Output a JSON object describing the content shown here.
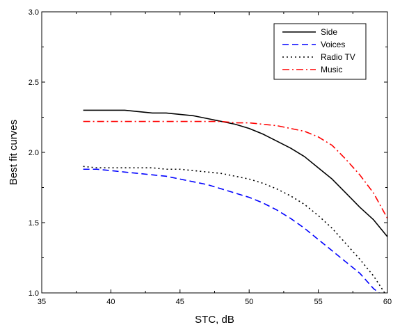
{
  "chart_data": {
    "type": "line",
    "title": "",
    "xlabel": "STC, dB",
    "ylabel": "Best fit curves",
    "xlim": [
      35,
      60
    ],
    "ylim": [
      1.0,
      3.0
    ],
    "x_ticks": [
      35,
      40,
      45,
      50,
      55,
      60
    ],
    "y_ticks": [
      1.0,
      1.5,
      2.0,
      2.5,
      3.0
    ],
    "x_tick_labels": [
      "35",
      "40",
      "45",
      "50",
      "55",
      "60"
    ],
    "y_tick_labels": [
      "1.0",
      "1.5",
      "2.0",
      "2.5",
      "3.0"
    ],
    "grid": false,
    "legend_position": "top-right",
    "series": [
      {
        "name": "Side",
        "color": "#000000",
        "line_style": "solid",
        "x": [
          38,
          39,
          40,
          41,
          42,
          43,
          44,
          45,
          46,
          47,
          48,
          49,
          50,
          51,
          52,
          53,
          54,
          55,
          56,
          57,
          58,
          59,
          60
        ],
        "y": [
          2.3,
          2.3,
          2.3,
          2.3,
          2.29,
          2.28,
          2.28,
          2.27,
          2.26,
          2.24,
          2.22,
          2.2,
          2.17,
          2.13,
          2.08,
          2.03,
          1.97,
          1.89,
          1.81,
          1.71,
          1.61,
          1.52,
          1.4
        ]
      },
      {
        "name": "Voices",
        "color": "#0000ff",
        "line_style": "dashed",
        "x": [
          38,
          39,
          40,
          41,
          42,
          43,
          44,
          45,
          46,
          47,
          48,
          49,
          50,
          51,
          52,
          53,
          54,
          55,
          56,
          57,
          58,
          59,
          59.4
        ],
        "y": [
          1.88,
          1.88,
          1.87,
          1.86,
          1.85,
          1.84,
          1.83,
          1.81,
          1.79,
          1.77,
          1.74,
          1.71,
          1.68,
          1.64,
          1.59,
          1.53,
          1.46,
          1.38,
          1.3,
          1.22,
          1.14,
          1.03,
          1.0
        ]
      },
      {
        "name": "Radio TV",
        "color": "#000000",
        "line_style": "dotted",
        "x": [
          38,
          39,
          40,
          41,
          42,
          43,
          44,
          45,
          46,
          47,
          48,
          49,
          50,
          51,
          52,
          53,
          54,
          55,
          56,
          57,
          58,
          59,
          59.8
        ],
        "y": [
          1.9,
          1.89,
          1.89,
          1.89,
          1.89,
          1.89,
          1.88,
          1.88,
          1.87,
          1.86,
          1.85,
          1.83,
          1.81,
          1.78,
          1.74,
          1.69,
          1.63,
          1.55,
          1.46,
          1.35,
          1.24,
          1.12,
          1.0
        ]
      },
      {
        "name": "Music",
        "color": "#ff0000",
        "line_style": "dashdot",
        "x": [
          38,
          39,
          40,
          41,
          42,
          43,
          44,
          45,
          46,
          47,
          48,
          49,
          50,
          51,
          52,
          53,
          54,
          55,
          56,
          57,
          58,
          59,
          60
        ],
        "y": [
          2.22,
          2.22,
          2.22,
          2.22,
          2.22,
          2.22,
          2.22,
          2.22,
          2.22,
          2.22,
          2.22,
          2.21,
          2.21,
          2.2,
          2.19,
          2.17,
          2.15,
          2.11,
          2.05,
          1.95,
          1.84,
          1.71,
          1.53
        ]
      }
    ]
  }
}
